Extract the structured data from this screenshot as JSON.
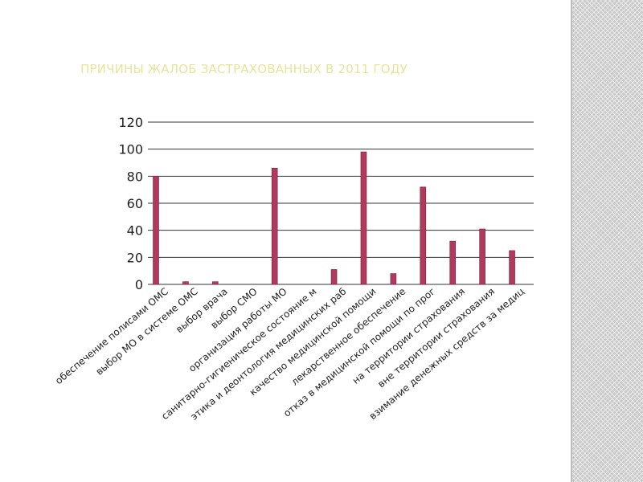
{
  "title": "ПРИЧИНЫ ЖАЛОБ ЗАСТРАХОВАННЫХ В 2011 ГОДУ",
  "colors": {
    "title": "#e8e49a",
    "bar": "#b03a5e",
    "bar_border": "#7a2040",
    "grid": "#333333",
    "side_panel": "#c9c9c9"
  },
  "chart_data": {
    "type": "bar",
    "categories": [
      "обеспечение полисами ОМС",
      "выбор МО в системе ОМС",
      "выбор врача",
      "выбор СМО",
      "организация работы МО",
      "санитарно-гигиеническое состояние м",
      "этика и деонтология медицинских раб",
      "качество медицинской помощи",
      "лекарственное обеспечение",
      "отказ в медицинской помощи по прог",
      "на территории страхования",
      "вне территории страхования",
      "взимание денежных средств за медиц"
    ],
    "values": [
      80,
      2,
      2,
      0,
      86,
      0,
      11,
      98,
      8,
      72,
      32,
      41,
      25
    ],
    "y_ticks": [
      "0",
      "20",
      "40",
      "60",
      "80",
      "100",
      "120"
    ],
    "ylim": [
      0,
      120
    ],
    "grid": true,
    "legend": "none",
    "title": "",
    "xlabel": "",
    "ylabel": ""
  }
}
